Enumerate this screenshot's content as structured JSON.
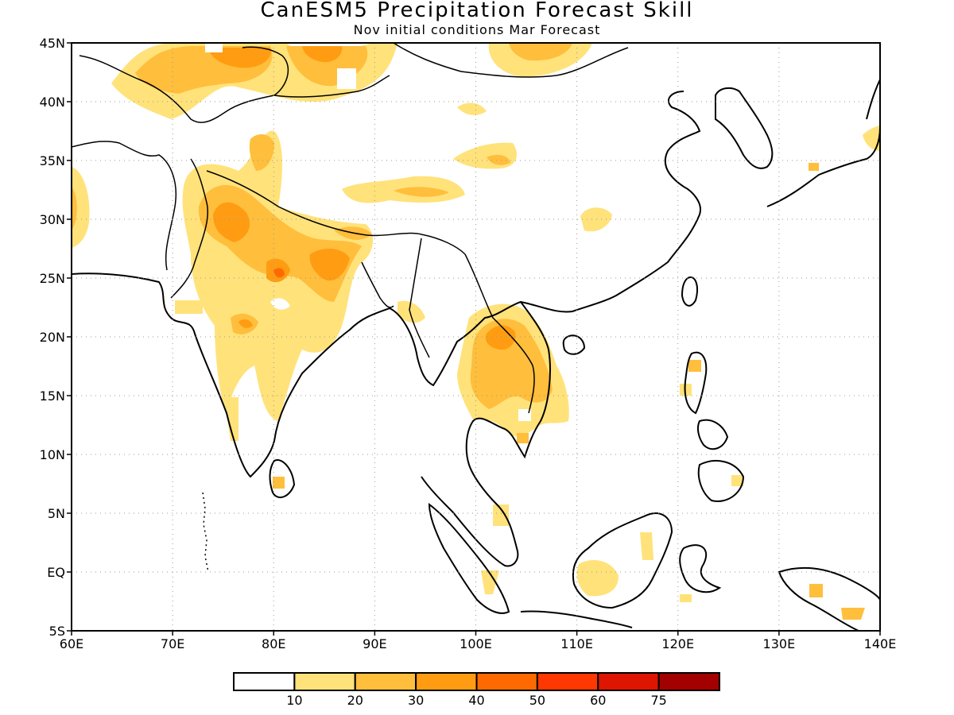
{
  "title": "CanESM5 Precipitation Forecast Skill",
  "subtitle": "Nov initial conditions  Mar Forecast",
  "map": {
    "lon_range": [
      60,
      140
    ],
    "lat_range": [
      -5,
      45
    ],
    "x_ticks": [
      "60E",
      "70E",
      "80E",
      "90E",
      "100E",
      "110E",
      "120E",
      "130E",
      "140E"
    ],
    "y_ticks": [
      "45N",
      "40N",
      "35N",
      "30N",
      "25N",
      "20N",
      "15N",
      "10N",
      "5N",
      "EQ",
      "5S"
    ],
    "grid": "dotted"
  },
  "colorbar": {
    "labels": [
      "10",
      "20",
      "30",
      "40",
      "50",
      "60",
      "75"
    ],
    "colors": [
      "#ffffff",
      "#ffe27a",
      "#ffbe3c",
      "#ff9c12",
      "#ff6a00",
      "#ff3700",
      "#de1500",
      "#a30000"
    ]
  }
}
